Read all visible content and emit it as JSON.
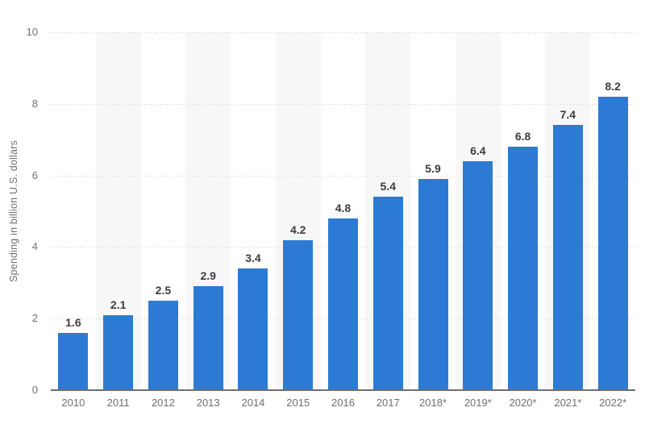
{
  "chart_data": {
    "type": "bar",
    "title": "",
    "xlabel": "",
    "ylabel": "Spending in billion U.S. dollars",
    "categories": [
      "2010",
      "2011",
      "2012",
      "2013",
      "2014",
      "2015",
      "2016",
      "2017",
      "2018*",
      "2019*",
      "2020*",
      "2021*",
      "2022*"
    ],
    "values": [
      1.6,
      2.1,
      2.5,
      2.9,
      3.4,
      4.2,
      4.8,
      5.4,
      5.9,
      6.4,
      6.8,
      7.4,
      8.2
    ],
    "data_labels": [
      "1.6",
      "2.1",
      "2.5",
      "2.9",
      "3.4",
      "4.2",
      "4.8",
      "5.4",
      "5.9",
      "6.4",
      "6.8",
      "7.4",
      "8.2"
    ],
    "ylim": [
      0,
      10
    ],
    "yticks": [
      0,
      2,
      4,
      6,
      8,
      10
    ],
    "grid": "horizontal-dotted",
    "legend": "none",
    "colors": {
      "bar": "#2d7ad4",
      "column_band": "#f7f7f7",
      "gridline": "#cccccc",
      "axis_line": "#6e6e6e",
      "tick_text": "#6f6f6f",
      "value_label_text": "#3d3d3d",
      "background": "#ffffff"
    }
  }
}
